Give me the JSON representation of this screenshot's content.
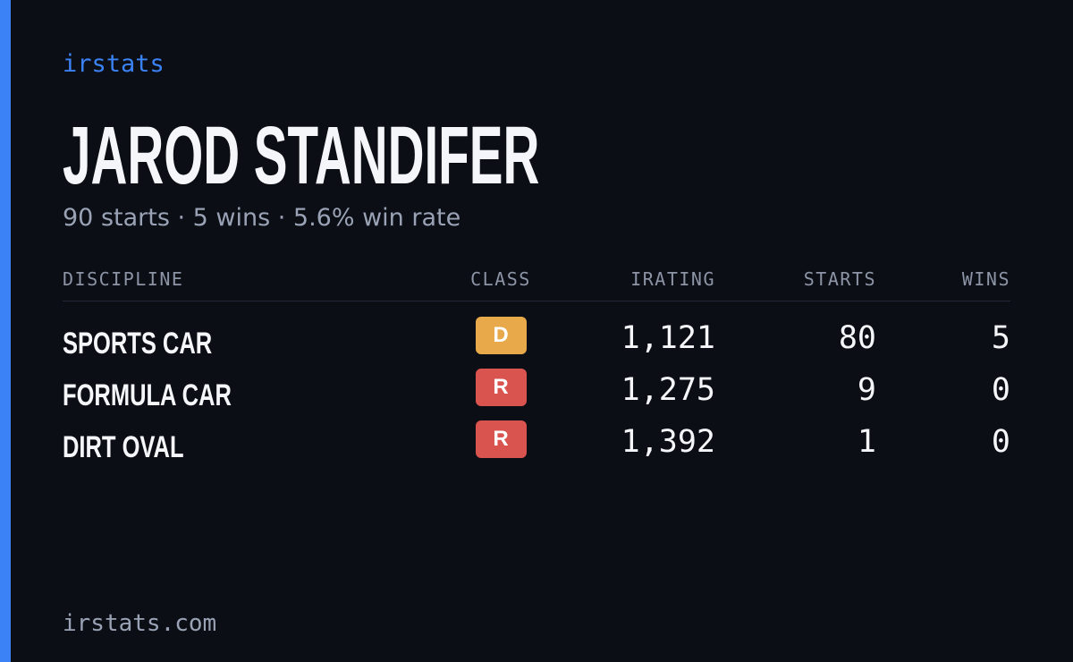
{
  "header": {
    "brand": "irstats",
    "name": "JAROD STANDIFER",
    "summary": "90 starts · 5 wins · 5.6% win rate"
  },
  "table": {
    "columns": [
      "DISCIPLINE",
      "CLASS",
      "IRATING",
      "STARTS",
      "WINS"
    ],
    "rows": [
      {
        "discipline": "SPORTS CAR",
        "class": "D",
        "class_color": "#e8a94b",
        "irating": "1,121",
        "starts": "80",
        "wins": "5"
      },
      {
        "discipline": "FORMULA CAR",
        "class": "R",
        "class_color": "#d9534f",
        "irating": "1,275",
        "starts": "9",
        "wins": "0"
      },
      {
        "discipline": "DIRT OVAL",
        "class": "R",
        "class_color": "#d9534f",
        "irating": "1,392",
        "starts": "1",
        "wins": "0"
      }
    ]
  },
  "footer": {
    "site": "irstats.com"
  }
}
